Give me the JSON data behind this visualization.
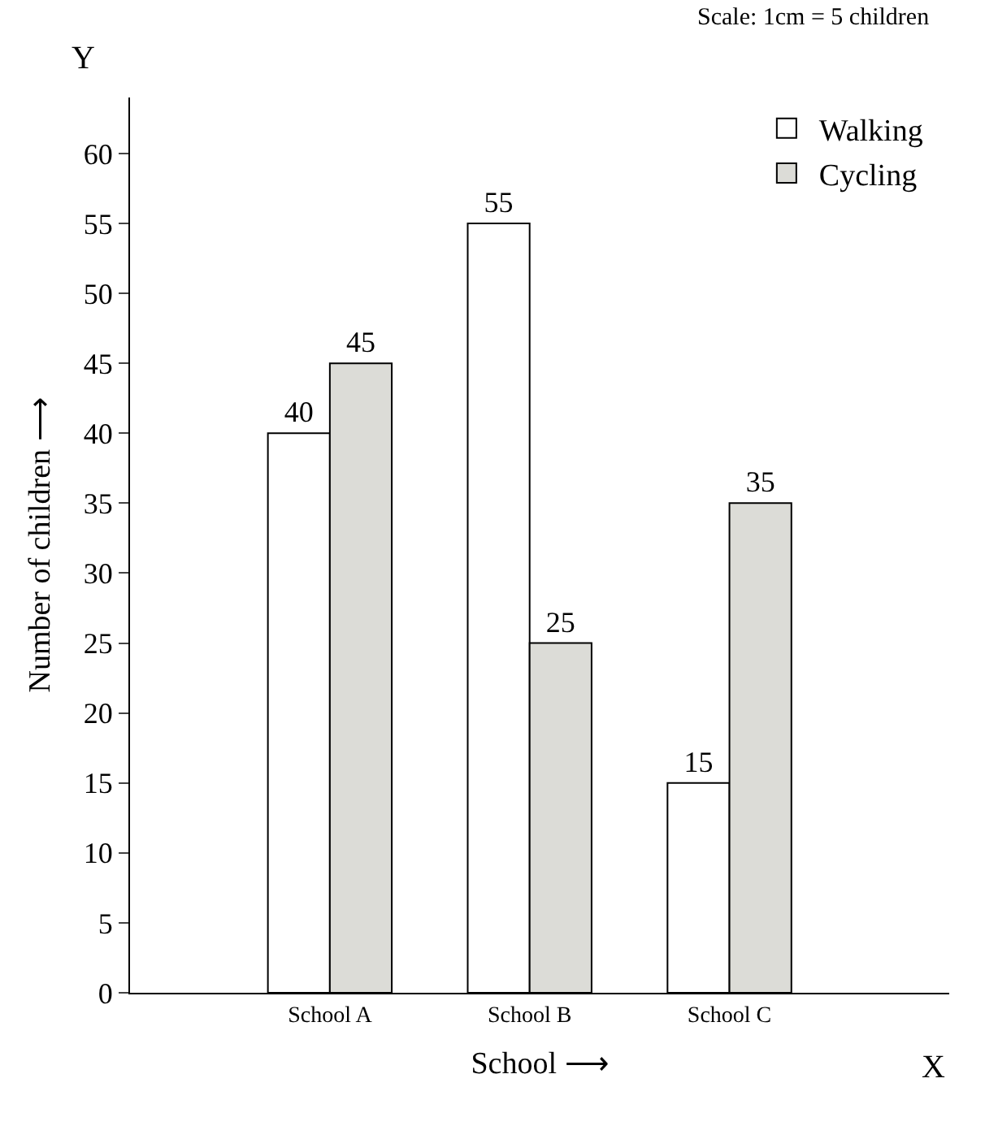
{
  "chart_data": {
    "type": "bar",
    "xlabel": "School ⟶",
    "ylabel": "Number of children ⟶",
    "categories": [
      "School A",
      "School B",
      "School C"
    ],
    "series": [
      {
        "name": "Walking",
        "color": "#ffffff",
        "values": [
          40,
          55,
          15
        ]
      },
      {
        "name": "Cycling",
        "color": "#dcdcd7",
        "values": [
          45,
          25,
          35
        ]
      }
    ],
    "ylim": [
      0,
      64
    ],
    "yticks": [
      0,
      5,
      10,
      15,
      20,
      25,
      30,
      35,
      40,
      45,
      50,
      55,
      60
    ],
    "data_labels": true,
    "legend": "top right",
    "annotations": [
      "Scale: 1cm = 5 children",
      "Y",
      "X"
    ]
  }
}
